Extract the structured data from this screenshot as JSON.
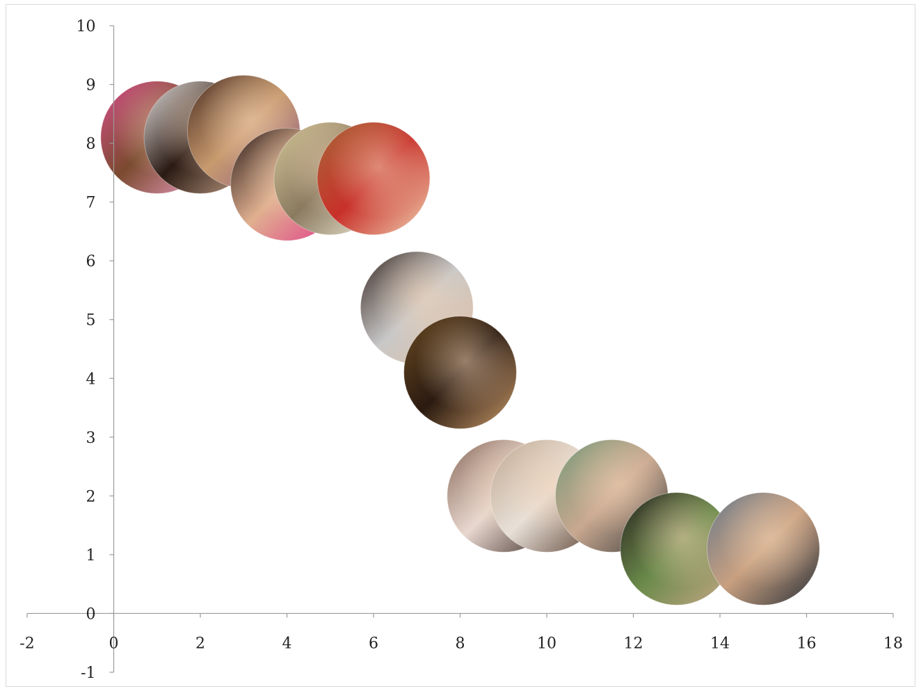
{
  "chart_data": {
    "type": "scatter",
    "title": "",
    "xlabel": "",
    "ylabel": "",
    "xlim": [
      -2,
      18
    ],
    "ylim": [
      -1,
      10
    ],
    "x_ticks": [
      -2,
      0,
      2,
      4,
      6,
      8,
      10,
      12,
      14,
      16,
      18
    ],
    "y_ticks": [
      -1,
      0,
      1,
      2,
      3,
      4,
      5,
      6,
      7,
      8,
      9,
      10
    ],
    "grid": false,
    "legend": "none",
    "marker": "photo-bubble",
    "points": [
      {
        "x": 1.0,
        "y": 8.1,
        "marker_colors": [
          "#d94f8c",
          "#7a4a2e",
          "#f0a0c8"
        ]
      },
      {
        "x": 2.0,
        "y": 8.1,
        "marker_colors": [
          "#e9e4e2",
          "#2a1a14",
          "#c9a58a"
        ]
      },
      {
        "x": 3.0,
        "y": 8.2,
        "marker_colors": [
          "#4a2e22",
          "#c89a6e",
          "#8a5a8a"
        ]
      },
      {
        "x": 4.0,
        "y": 7.3,
        "marker_colors": [
          "#2a1c18",
          "#e0b090",
          "#e03a8a"
        ]
      },
      {
        "x": 5.0,
        "y": 7.4,
        "marker_colors": [
          "#d8c89a",
          "#8a7a60",
          "#f2ecd8"
        ]
      },
      {
        "x": 6.0,
        "y": 7.4,
        "marker_colors": [
          "#a8683a",
          "#c8302a",
          "#f0d0b0"
        ]
      },
      {
        "x": 7.0,
        "y": 5.2,
        "marker_colors": [
          "#3a2a24",
          "#c8c8c8",
          "#e8c0a0"
        ]
      },
      {
        "x": 8.0,
        "y": 4.1,
        "marker_colors": [
          "#6a4a22",
          "#2a1a10",
          "#c89a6a"
        ]
      },
      {
        "x": 9.0,
        "y": 2.0,
        "marker_colors": [
          "#8a6a5a",
          "#e8d8d0",
          "#3a2a24"
        ]
      },
      {
        "x": 10.0,
        "y": 2.0,
        "marker_colors": [
          "#c0a890",
          "#e8e0d8",
          "#5a4030"
        ]
      },
      {
        "x": 11.5,
        "y": 2.0,
        "marker_colors": [
          "#7a9a7a",
          "#c8a890",
          "#3a3a3a"
        ]
      },
      {
        "x": 13.0,
        "y": 1.1,
        "marker_colors": [
          "#2a2420",
          "#6a8a4a",
          "#c8a888"
        ]
      },
      {
        "x": 15.0,
        "y": 1.1,
        "marker_colors": [
          "#6a7a8a",
          "#c8a080",
          "#2a3038"
        ]
      }
    ],
    "marker_radius_data_units": 1.3
  }
}
